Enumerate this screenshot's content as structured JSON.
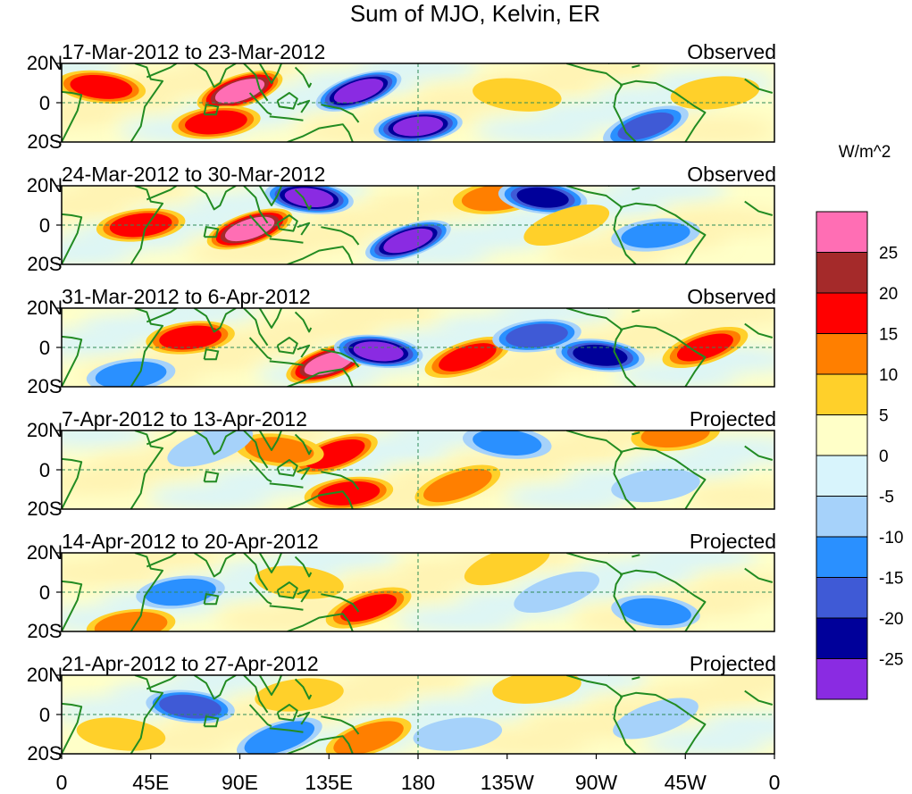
{
  "chart_data": {
    "type": "heatmap",
    "title": "Sum of MJO, Kelvin, ER",
    "units": "W/m^2",
    "x_ticks": [
      "0",
      "45E",
      "90E",
      "135E",
      "180",
      "135W",
      "90W",
      "45W",
      "0"
    ],
    "y_ticks": [
      "20N",
      "0",
      "20S"
    ],
    "colorbar": {
      "labels": [
        "25",
        "20",
        "15",
        "10",
        "5",
        "0",
        "-5",
        "-10",
        "-15",
        "-20",
        "-25"
      ],
      "colors": [
        "#ff6eb4",
        "#a52a2a",
        "#ff0000",
        "#ff7f00",
        "#ffd02a",
        "#ffffc8",
        "#d8f4fc",
        "#a6d2fa",
        "#2a90ff",
        "#3f5ad6",
        "#00009a",
        "#8a2be2"
      ]
    },
    "panels": [
      {
        "period": "17-Mar-2012 to 23-Mar-2012",
        "status": "Observed",
        "anomalies": [
          {
            "lon": 90,
            "lat": 6,
            "value": 28
          },
          {
            "lon": 78,
            "lat": -10,
            "value": 18
          },
          {
            "lon": 20,
            "lat": 8,
            "value": 18
          },
          {
            "lon": 150,
            "lat": 6,
            "value": -28
          },
          {
            "lon": 180,
            "lat": -12,
            "value": -27
          },
          {
            "lon": 230,
            "lat": 4,
            "value": 8
          },
          {
            "lon": 295,
            "lat": -12,
            "value": -15
          },
          {
            "lon": 330,
            "lat": 5,
            "value": 6
          }
        ]
      },
      {
        "period": "24-Mar-2012 to 30-Mar-2012",
        "status": "Observed",
        "anomalies": [
          {
            "lon": 95,
            "lat": -2,
            "value": 28
          },
          {
            "lon": 40,
            "lat": 0,
            "value": 18
          },
          {
            "lon": 125,
            "lat": 14,
            "value": -26
          },
          {
            "lon": 175,
            "lat": -8,
            "value": -28
          },
          {
            "lon": 220,
            "lat": 14,
            "value": 12
          },
          {
            "lon": 243,
            "lat": 14,
            "value": -20
          },
          {
            "lon": 255,
            "lat": 0,
            "value": 8
          },
          {
            "lon": 300,
            "lat": -5,
            "value": -10
          }
        ]
      },
      {
        "period": "31-Mar-2012 to 6-Apr-2012",
        "status": "Observed",
        "anomalies": [
          {
            "lon": 135,
            "lat": -8,
            "value": 28
          },
          {
            "lon": 65,
            "lat": 5,
            "value": 18
          },
          {
            "lon": 160,
            "lat": -2,
            "value": -27
          },
          {
            "lon": 205,
            "lat": -5,
            "value": 16
          },
          {
            "lon": 240,
            "lat": 6,
            "value": -18
          },
          {
            "lon": 272,
            "lat": -4,
            "value": -22
          },
          {
            "lon": 325,
            "lat": 0,
            "value": 15
          },
          {
            "lon": 35,
            "lat": -14,
            "value": -12
          }
        ]
      },
      {
        "period": "7-Apr-2012 to 13-Apr-2012",
        "status": "Projected",
        "anomalies": [
          {
            "lon": 138,
            "lat": 8,
            "value": 18
          },
          {
            "lon": 145,
            "lat": -12,
            "value": 18
          },
          {
            "lon": 110,
            "lat": 10,
            "value": 10
          },
          {
            "lon": 200,
            "lat": -8,
            "value": 12
          },
          {
            "lon": 310,
            "lat": 18,
            "value": 10
          },
          {
            "lon": 225,
            "lat": 14,
            "value": -10
          },
          {
            "lon": 75,
            "lat": 12,
            "value": -6
          },
          {
            "lon": 300,
            "lat": -8,
            "value": -6
          }
        ]
      },
      {
        "period": "14-Apr-2012 to 20-Apr-2012",
        "status": "Projected",
        "anomalies": [
          {
            "lon": 155,
            "lat": -8,
            "value": 15
          },
          {
            "lon": 35,
            "lat": -17,
            "value": 14
          },
          {
            "lon": 120,
            "lat": 5,
            "value": 8
          },
          {
            "lon": 225,
            "lat": 14,
            "value": 8
          },
          {
            "lon": 60,
            "lat": 0,
            "value": -12
          },
          {
            "lon": 300,
            "lat": -10,
            "value": -12
          },
          {
            "lon": 250,
            "lat": 0,
            "value": -6
          },
          {
            "lon": 95,
            "lat": 10,
            "value": 4
          }
        ]
      },
      {
        "period": "21-Apr-2012 to 27-Apr-2012",
        "status": "Projected",
        "anomalies": [
          {
            "lon": 155,
            "lat": -12,
            "value": 14
          },
          {
            "lon": 120,
            "lat": 10,
            "value": 6
          },
          {
            "lon": 65,
            "lat": 4,
            "value": -18
          },
          {
            "lon": 110,
            "lat": -12,
            "value": -14
          },
          {
            "lon": 240,
            "lat": 14,
            "value": 8
          },
          {
            "lon": 30,
            "lat": -10,
            "value": 6
          },
          {
            "lon": 300,
            "lat": -2,
            "value": -8
          },
          {
            "lon": 200,
            "lat": -10,
            "value": -6
          }
        ]
      }
    ]
  }
}
